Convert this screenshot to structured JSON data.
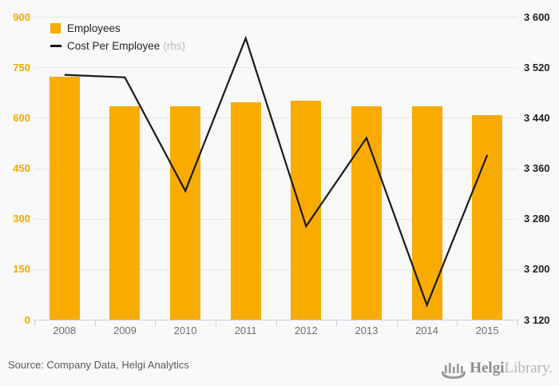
{
  "legend": {
    "employees_label": "Employees",
    "cost_label": "Cost Per Employee",
    "cost_suffix": "(rhs)"
  },
  "footer": {
    "source_text": "Source: Company Data, Helgi Analytics",
    "logo_bold": "Helgi",
    "logo_light": "Library."
  },
  "colors": {
    "bar": "#f9ab00",
    "line": "#1a1a1a",
    "left_axis_labels": "#f5a800",
    "right_axis_labels": "#1f1f1f",
    "gridline": "#e6e6e6",
    "x_axis": "#c5cfe2",
    "background": "#f9f9f9"
  },
  "chart_data": {
    "type": "bar",
    "subtype": "combo bar + line, dual axis",
    "categories": [
      "2008",
      "2009",
      "2010",
      "2011",
      "2012",
      "2013",
      "2014",
      "2015"
    ],
    "series": [
      {
        "name": "Employees",
        "type": "bar",
        "axis": "left",
        "values": [
          723,
          633,
          635,
          645,
          650,
          633,
          633,
          609
        ]
      },
      {
        "name": "Cost Per Employee",
        "type": "line",
        "axis": "right",
        "values": [
          3508,
          3504,
          3324,
          3566,
          3268,
          3408,
          3143,
          3381
        ]
      }
    ],
    "left_axis": {
      "min": 0,
      "max": 900,
      "step": 150,
      "tick_labels": [
        "900",
        "750",
        "600",
        "450",
        "300",
        "150",
        "0"
      ]
    },
    "right_axis": {
      "min": 3120,
      "max": 3600,
      "step": 80,
      "tick_labels": [
        "3 600",
        "3 520",
        "3 440",
        "3 360",
        "3 280",
        "3 200",
        "3 120"
      ]
    },
    "grid": true,
    "legend_position": "top-left",
    "title": "",
    "xlabel": "",
    "ylabel": ""
  }
}
